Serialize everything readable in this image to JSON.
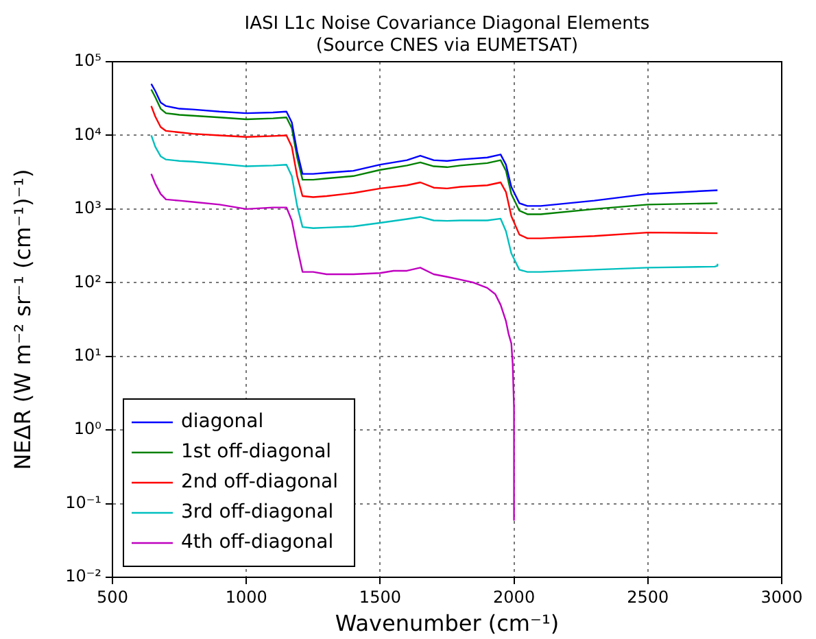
{
  "chart_data": {
    "type": "line",
    "title": "IASI L1c Noise Covariance Diagonal Elements\n(Source CNES via EUMETSAT)",
    "xlabel": "Wavenumber (cm⁻¹)",
    "ylabel": "NEΔR (W m⁻² sr⁻¹ (cm⁻¹)⁻¹)",
    "log": "y",
    "grid": true,
    "legend": "bottom left",
    "marker": "none",
    "line_style": "solid",
    "xlim": [
      500,
      3000
    ],
    "xticks": [
      500,
      1000,
      1500,
      2000,
      2500,
      3000
    ],
    "ylim": [
      0.01,
      100000
    ],
    "yticks": [
      {
        "value": 0.01,
        "label": "10⁻²"
      },
      {
        "value": 0.1,
        "label": "10⁻¹"
      },
      {
        "value": 1,
        "label": "10⁰"
      },
      {
        "value": 10,
        "label": "10¹"
      },
      {
        "value": 100,
        "label": "10²"
      },
      {
        "value": 1000,
        "label": "10³"
      },
      {
        "value": 10000,
        "label": "10⁴"
      },
      {
        "value": 100000,
        "label": "10⁵"
      }
    ],
    "series": [
      {
        "name": "diagonal",
        "color": "#0000ff",
        "x": [
          645,
          660,
          680,
          700,
          750,
          800,
          900,
          1000,
          1100,
          1150,
          1170,
          1190,
          1210,
          1250,
          1300,
          1400,
          1500,
          1600,
          1650,
          1700,
          1750,
          1800,
          1900,
          1950,
          1970,
          1990,
          2020,
          2050,
          2100,
          2300,
          2500,
          2760
        ],
        "values": [
          50000,
          40000,
          28000,
          25000,
          23000,
          22500,
          21000,
          20000,
          20500,
          21000,
          15000,
          6000,
          3000,
          3000,
          3100,
          3300,
          4000,
          4600,
          5300,
          4600,
          4500,
          4700,
          5000,
          5500,
          4000,
          2000,
          1200,
          1100,
          1100,
          1300,
          1600,
          1800
        ]
      },
      {
        "name": "1st off-diagonal",
        "color": "#008000",
        "x": [
          645,
          660,
          680,
          700,
          750,
          800,
          900,
          1000,
          1100,
          1150,
          1170,
          1190,
          1210,
          1250,
          1300,
          1400,
          1500,
          1600,
          1650,
          1700,
          1750,
          1800,
          1900,
          1950,
          1970,
          1990,
          2020,
          2050,
          2100,
          2300,
          2500,
          2760
        ],
        "values": [
          42000,
          33000,
          23000,
          20000,
          19000,
          18500,
          17500,
          16500,
          17000,
          17500,
          12500,
          5000,
          2500,
          2500,
          2600,
          2800,
          3400,
          3900,
          4300,
          3800,
          3700,
          3900,
          4200,
          4600,
          3300,
          1600,
          950,
          850,
          850,
          1000,
          1150,
          1200
        ]
      },
      {
        "name": "2nd off-diagonal",
        "color": "#ff0000",
        "x": [
          645,
          660,
          680,
          700,
          750,
          800,
          900,
          1000,
          1100,
          1150,
          1170,
          1190,
          1210,
          1250,
          1300,
          1400,
          1500,
          1600,
          1650,
          1700,
          1750,
          1800,
          1900,
          1950,
          1970,
          1990,
          2020,
          2050,
          2100,
          2300,
          2500,
          2760
        ],
        "values": [
          25000,
          18000,
          13000,
          11500,
          11000,
          10500,
          10000,
          9500,
          9800,
          10000,
          7000,
          2800,
          1500,
          1450,
          1500,
          1650,
          1900,
          2100,
          2300,
          1950,
          1900,
          2000,
          2100,
          2300,
          1700,
          800,
          450,
          400,
          400,
          430,
          480,
          470
        ]
      },
      {
        "name": "3rd off-diagonal",
        "color": "#00bfbf",
        "x": [
          645,
          660,
          680,
          700,
          750,
          800,
          900,
          1000,
          1100,
          1150,
          1170,
          1190,
          1210,
          1250,
          1300,
          1400,
          1500,
          1600,
          1650,
          1700,
          1750,
          1800,
          1900,
          1950,
          1970,
          1990,
          2020,
          2050,
          2100,
          2300,
          2500,
          2750,
          2760,
          2760
        ],
        "values": [
          10000,
          7000,
          5200,
          4700,
          4500,
          4400,
          4100,
          3800,
          3900,
          4000,
          2800,
          1100,
          570,
          550,
          560,
          580,
          650,
          730,
          780,
          700,
          690,
          700,
          700,
          740,
          500,
          250,
          150,
          140,
          140,
          150,
          160,
          165,
          170,
          180
        ]
      },
      {
        "name": "4th off-diagonal",
        "color": "#bf00bf",
        "x": [
          645,
          660,
          680,
          700,
          750,
          800,
          900,
          1000,
          1100,
          1150,
          1170,
          1190,
          1210,
          1250,
          1300,
          1400,
          1500,
          1550,
          1600,
          1650,
          1700,
          1750,
          1800,
          1850,
          1900,
          1930,
          1950,
          1970,
          1980,
          1990,
          1995,
          2000,
          2000
        ],
        "values": [
          3000,
          2200,
          1600,
          1350,
          1300,
          1250,
          1150,
          1000,
          1050,
          1050,
          700,
          300,
          140,
          140,
          130,
          130,
          135,
          145,
          145,
          160,
          130,
          120,
          110,
          100,
          85,
          70,
          50,
          30,
          20,
          15,
          8,
          2,
          0.06
        ]
      }
    ]
  }
}
